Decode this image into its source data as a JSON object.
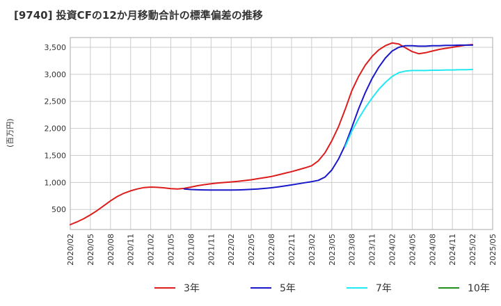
{
  "chart_data": {
    "type": "line",
    "title": "[9740]  投資CFの12か月移動合計の標準偏差の推移",
    "ylabel": "(百万円)",
    "xlabel": "",
    "ylim": [
      130,
      3680
    ],
    "yticks": [
      500,
      1000,
      1500,
      2000,
      2500,
      3000,
      3500
    ],
    "ytick_labels": [
      "500",
      "1,000",
      "1,500",
      "2,000",
      "2,500",
      "3,000",
      "3,500"
    ],
    "xlim": [
      "2020-02",
      "2025-05"
    ],
    "xticks": [
      "2020/02",
      "2020/05",
      "2020/08",
      "2020/11",
      "2021/02",
      "2021/05",
      "2021/08",
      "2021/11",
      "2022/02",
      "2022/05",
      "2022/08",
      "2022/11",
      "2023/02",
      "2023/05",
      "2023/08",
      "2023/11",
      "2024/02",
      "2024/05",
      "2024/08",
      "2024/11",
      "2025/02",
      "2025/05"
    ],
    "grid": true,
    "legend_position": "bottom",
    "series": [
      {
        "name": "3年",
        "color": "#dd1c1c",
        "x": [
          "2020-02",
          "2020-03",
          "2020-04",
          "2020-05",
          "2020-06",
          "2020-07",
          "2020-08",
          "2020-09",
          "2020-10",
          "2020-11",
          "2020-12",
          "2021-01",
          "2021-02",
          "2021-03",
          "2021-04",
          "2021-05",
          "2021-06",
          "2021-07",
          "2021-08",
          "2021-09",
          "2021-10",
          "2021-11",
          "2021-12",
          "2022-01",
          "2022-02",
          "2022-03",
          "2022-04",
          "2022-05",
          "2022-06",
          "2022-07",
          "2022-08",
          "2022-09",
          "2022-10",
          "2022-11",
          "2022-12",
          "2023-01",
          "2023-02",
          "2023-03",
          "2023-04",
          "2023-05",
          "2023-06",
          "2023-07",
          "2023-08",
          "2023-09",
          "2023-10",
          "2023-11",
          "2023-12",
          "2024-01",
          "2024-02",
          "2024-03",
          "2024-04",
          "2024-05",
          "2024-06",
          "2024-07",
          "2024-08",
          "2024-09",
          "2024-10",
          "2024-11",
          "2024-12",
          "2025-01",
          "2025-02"
        ],
        "values": [
          220,
          270,
          330,
          400,
          480,
          570,
          660,
          740,
          800,
          845,
          880,
          905,
          915,
          910,
          900,
          885,
          880,
          890,
          915,
          940,
          960,
          975,
          990,
          1000,
          1010,
          1020,
          1035,
          1050,
          1070,
          1090,
          1110,
          1140,
          1170,
          1200,
          1235,
          1270,
          1310,
          1400,
          1550,
          1770,
          2030,
          2350,
          2700,
          2960,
          3170,
          3330,
          3450,
          3530,
          3580,
          3560,
          3490,
          3420,
          3380,
          3400,
          3430,
          3460,
          3480,
          3500,
          3520,
          3540,
          3550
        ]
      },
      {
        "name": "5年",
        "color": "#1818c8",
        "x": [
          "2021-07",
          "2021-08",
          "2021-09",
          "2021-10",
          "2021-11",
          "2021-12",
          "2022-01",
          "2022-02",
          "2022-03",
          "2022-04",
          "2022-05",
          "2022-06",
          "2022-07",
          "2022-08",
          "2022-09",
          "2022-10",
          "2022-11",
          "2022-12",
          "2023-01",
          "2023-02",
          "2023-03",
          "2023-04",
          "2023-05",
          "2023-06",
          "2023-07",
          "2023-08",
          "2023-09",
          "2023-10",
          "2023-11",
          "2023-12",
          "2024-01",
          "2024-02",
          "2024-03",
          "2024-04",
          "2024-05",
          "2024-06",
          "2024-07",
          "2024-08",
          "2024-09",
          "2024-10",
          "2024-11",
          "2024-12",
          "2025-01",
          "2025-02"
        ],
        "values": [
          880,
          870,
          865,
          862,
          860,
          860,
          860,
          860,
          862,
          866,
          872,
          880,
          890,
          902,
          918,
          935,
          955,
          975,
          995,
          1015,
          1040,
          1100,
          1230,
          1430,
          1690,
          2020,
          2360,
          2660,
          2920,
          3130,
          3300,
          3430,
          3500,
          3530,
          3530,
          3520,
          3520,
          3530,
          3530,
          3535,
          3535,
          3540,
          3540,
          3540
        ]
      },
      {
        "name": "7年",
        "color": "#22e8f2",
        "x": [
          "2023-07",
          "2023-08",
          "2023-09",
          "2023-10",
          "2023-11",
          "2023-12",
          "2024-01",
          "2024-02",
          "2024-03",
          "2024-04",
          "2024-05",
          "2024-06",
          "2024-07",
          "2024-08",
          "2024-09",
          "2024-10",
          "2024-11",
          "2024-12",
          "2025-01",
          "2025-02"
        ],
        "values": [
          1660,
          1950,
          2180,
          2380,
          2560,
          2720,
          2850,
          2960,
          3030,
          3060,
          3070,
          3070,
          3070,
          3075,
          3075,
          3080,
          3080,
          3085,
          3085,
          3090
        ]
      },
      {
        "name": "10年",
        "color": "#1f8f1f",
        "x": [],
        "values": []
      }
    ]
  }
}
